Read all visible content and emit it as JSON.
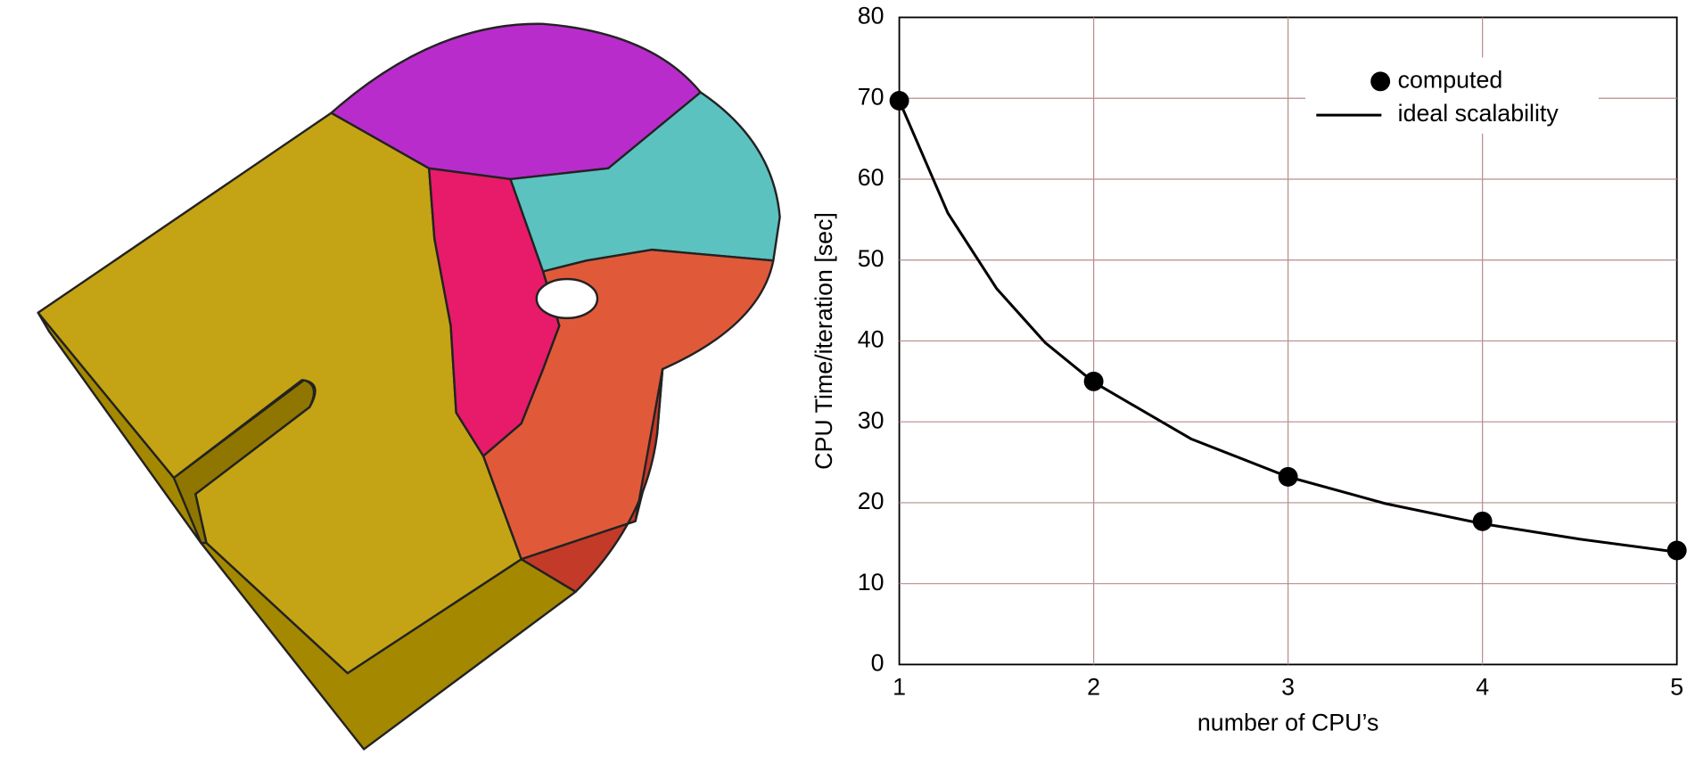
{
  "chart_data": {
    "type": "line",
    "xlabel": "number of CPU’s",
    "ylabel": "CPU Time/iteration [sec]",
    "xlim": [
      1,
      5
    ],
    "ylim": [
      0,
      80
    ],
    "xticks": [
      1,
      2,
      3,
      4,
      5
    ],
    "yticks": [
      0,
      10,
      20,
      30,
      40,
      50,
      60,
      70,
      80
    ],
    "grid": true,
    "grid_color": "#b98c8c",
    "legend": "upper right",
    "series": [
      {
        "name": "computed",
        "color": "#000000",
        "style": "marker",
        "x": [
          1,
          2,
          3,
          4,
          5
        ],
        "values": [
          69.7,
          35,
          23.2,
          17.7,
          14.1
        ]
      },
      {
        "name": "ideal scalability",
        "color": "#000000",
        "style": "line",
        "x": [
          1,
          1.25,
          1.5,
          1.75,
          2,
          2.5,
          3,
          3.5,
          4,
          4.5,
          5
        ],
        "values": [
          69.7,
          55.8,
          46.5,
          39.8,
          34.9,
          27.9,
          23.2,
          19.9,
          17.4,
          15.5,
          13.9
        ]
      }
    ]
  }
}
